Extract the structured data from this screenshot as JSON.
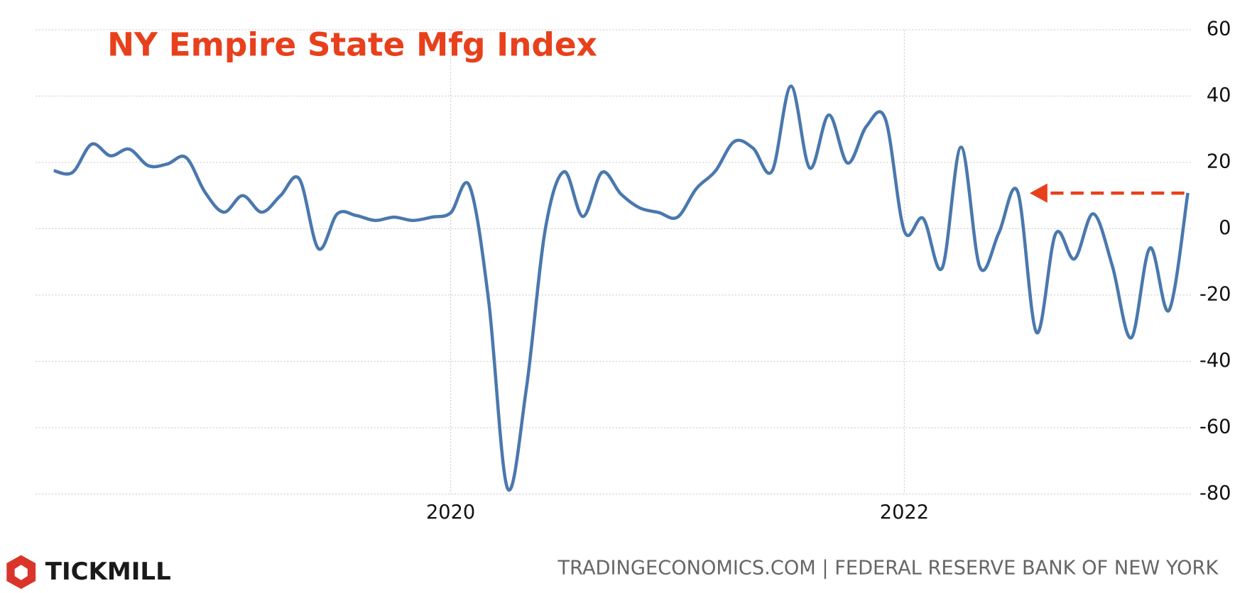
{
  "chart_data": {
    "type": "line",
    "title": "NY Empire State Mfg Index",
    "x": [
      2018.25,
      2018.333,
      2018.417,
      2018.5,
      2018.583,
      2018.667,
      2018.75,
      2018.833,
      2018.917,
      2019,
      2019.083,
      2019.167,
      2019.25,
      2019.333,
      2019.417,
      2019.5,
      2019.583,
      2019.667,
      2019.75,
      2019.833,
      2019.917,
      2020,
      2020.083,
      2020.167,
      2020.25,
      2020.333,
      2020.417,
      2020.5,
      2020.583,
      2020.667,
      2020.75,
      2020.833,
      2020.917,
      2021,
      2021.083,
      2021.167,
      2021.25,
      2021.333,
      2021.417,
      2021.5,
      2021.583,
      2021.667,
      2021.75,
      2021.833,
      2021.917,
      2022,
      2022.083,
      2022.167,
      2022.25,
      2022.333,
      2022.417,
      2022.5,
      2022.583,
      2022.667,
      2022.75,
      2022.833,
      2022.917,
      2023,
      2023.083,
      2023.167,
      2023.25
    ],
    "series": [
      {
        "name": "NY Empire State Mfg Index",
        "color": "#4a78ae",
        "values": [
          17.5,
          17,
          25.5,
          22,
          24,
          19,
          19.5,
          21.5,
          11,
          5,
          10,
          5,
          10,
          15,
          -6,
          4.5,
          4,
          2.5,
          3.5,
          2.5,
          3.5,
          4.8,
          12.9,
          -21.5,
          -78.2,
          -48.5,
          -0.2,
          17.2,
          3.7,
          17,
          10.5,
          6.3,
          4.9,
          3.5,
          12.1,
          17.4,
          26.3,
          24.3,
          17.4,
          43,
          18.3,
          34.3,
          19.8,
          30.9,
          33,
          -0.7,
          3.1,
          -11.8,
          24.6,
          -11.6,
          -1.2,
          11.1,
          -31.3,
          -1.5,
          -9.1,
          4.5,
          -11.2,
          -32.9,
          -5.8,
          -24.6,
          10.8
        ]
      }
    ],
    "xlim": [
      2018.17,
      2023.27
    ],
    "xticks": [
      2020,
      2022
    ],
    "ylim": [
      -80,
      60
    ],
    "yticks": [
      -80,
      -60,
      -40,
      -20,
      0,
      20,
      40,
      60
    ],
    "grid": true
  },
  "footer": {
    "brand": "TICKMILL",
    "source": "TRADINGECONOMICS.COM | FEDERAL RESERVE BANK OF NEW YORK"
  }
}
